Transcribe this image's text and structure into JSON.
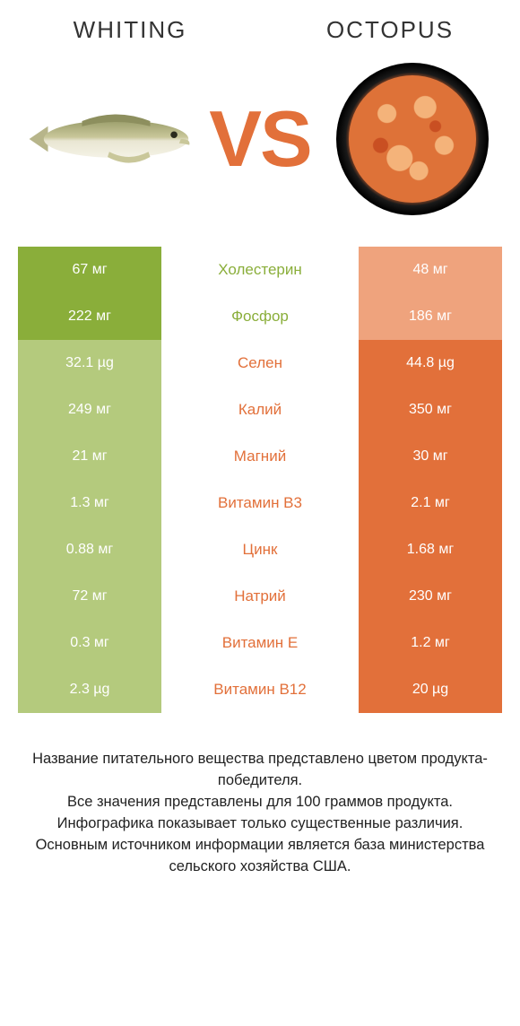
{
  "left_title": "WHITING",
  "right_title": "OCTOPUS",
  "vs_label": "VS",
  "colors": {
    "left_win": "#8aae3a",
    "left_lose": "#b4ca7d",
    "right_win": "#e2703a",
    "right_lose": "#efa37d",
    "mid_left": "#8aae3a",
    "mid_right": "#e2703a",
    "vs": "#e2703a"
  },
  "rows": [
    {
      "label": "Холестерин",
      "left": "67 мг",
      "right": "48 мг",
      "winner": "left"
    },
    {
      "label": "Фосфор",
      "left": "222 мг",
      "right": "186 мг",
      "winner": "left"
    },
    {
      "label": "Селен",
      "left": "32.1 µg",
      "right": "44.8 µg",
      "winner": "right"
    },
    {
      "label": "Калий",
      "left": "249 мг",
      "right": "350 мг",
      "winner": "right"
    },
    {
      "label": "Магний",
      "left": "21 мг",
      "right": "30 мг",
      "winner": "right"
    },
    {
      "label": "Витамин B3",
      "left": "1.3 мг",
      "right": "2.1 мг",
      "winner": "right"
    },
    {
      "label": "Цинк",
      "left": "0.88 мг",
      "right": "1.68 мг",
      "winner": "right"
    },
    {
      "label": "Натрий",
      "left": "72 мг",
      "right": "230 мг",
      "winner": "right"
    },
    {
      "label": "Витамин E",
      "left": "0.3 мг",
      "right": "1.2 мг",
      "winner": "right"
    },
    {
      "label": "Витамин B12",
      "left": "2.3 µg",
      "right": "20 µg",
      "winner": "right"
    }
  ],
  "footer_lines": [
    "Название питательного вещества представлено цветом продукта-победителя.",
    "Все значения представлены для 100 граммов продукта.",
    "Инфографика показывает только существенные различия.",
    "Основным источником информации является база министерства сельского хозяйства США."
  ]
}
